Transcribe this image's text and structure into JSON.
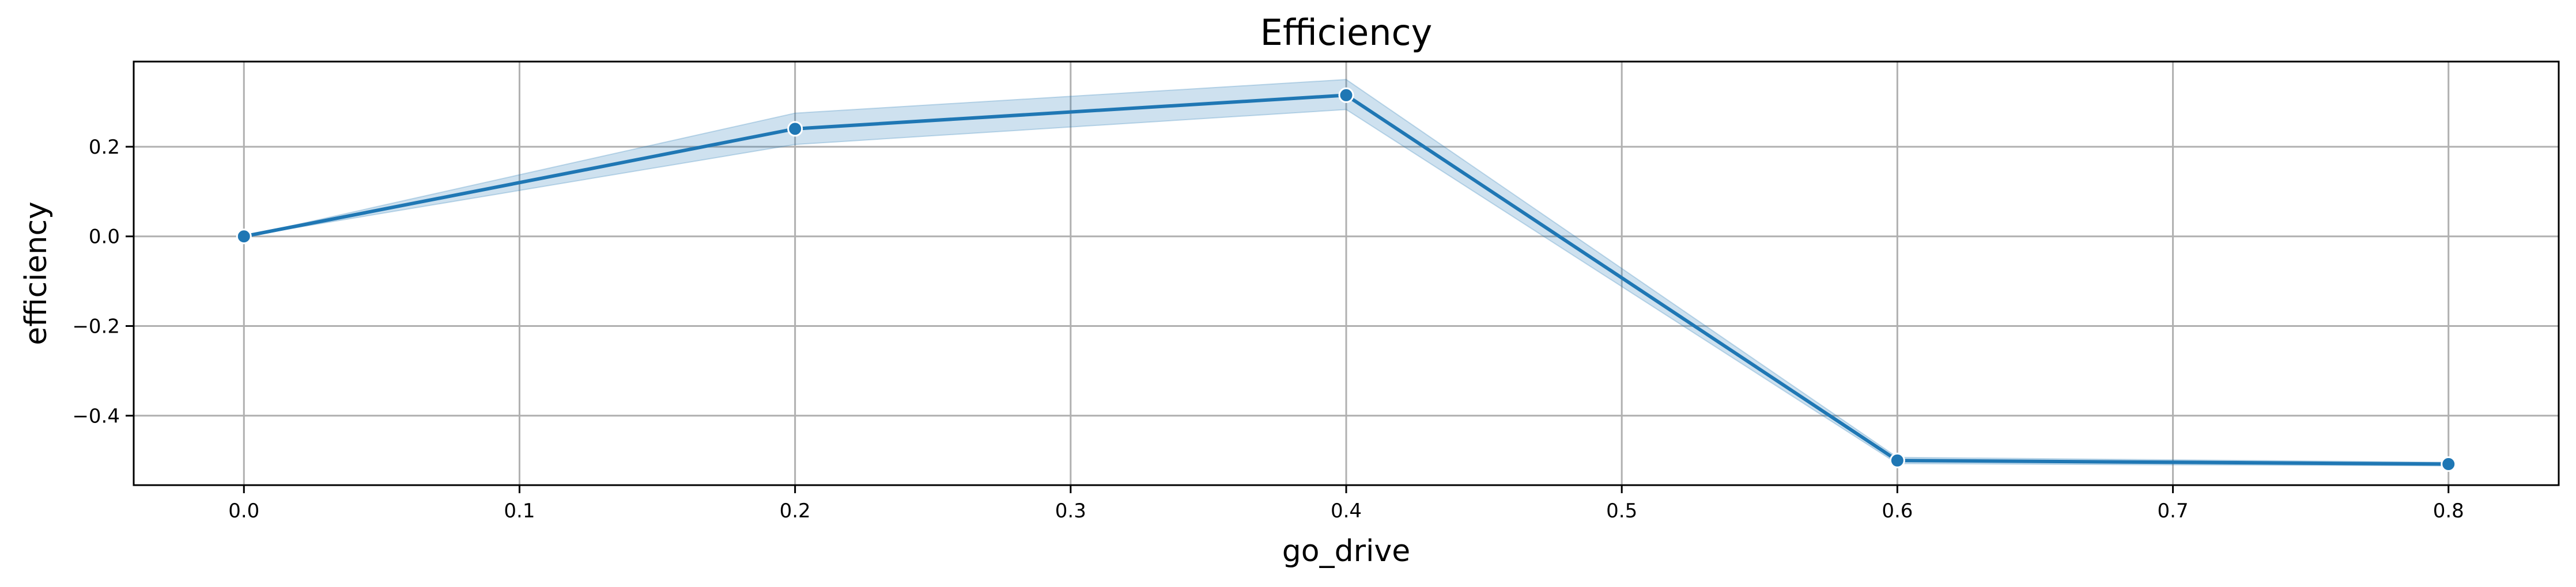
{
  "chart_data": {
    "type": "line",
    "title": "Efficiency",
    "xlabel": "go_drive",
    "ylabel": "efficiency",
    "xlim": [
      -0.04,
      0.84
    ],
    "ylim": [
      -0.555,
      0.39
    ],
    "xticks": [
      0.0,
      0.1,
      0.2,
      0.3,
      0.4,
      0.5,
      0.6,
      0.7,
      0.8
    ],
    "xtick_labels": [
      "0.0",
      "0.1",
      "0.2",
      "0.3",
      "0.4",
      "0.5",
      "0.6",
      "0.7",
      "0.8"
    ],
    "yticks": [
      -0.4,
      -0.2,
      0.0,
      0.2
    ],
    "ytick_labels": [
      "−0.4",
      "−0.2",
      "0.0",
      "0.2"
    ],
    "grid": true,
    "series": [
      {
        "x": [
          0.0,
          0.2,
          0.4,
          0.6,
          0.8
        ],
        "y": [
          0.0,
          0.24,
          0.315,
          -0.5,
          -0.508
        ],
        "ci_lower": [
          0.0,
          0.205,
          0.283,
          -0.507,
          -0.512
        ],
        "ci_upper": [
          0.0,
          0.275,
          0.35,
          -0.493,
          -0.504
        ],
        "color": "#1f77b4",
        "band_color": "#1f77b4",
        "marker": "circle"
      }
    ]
  }
}
